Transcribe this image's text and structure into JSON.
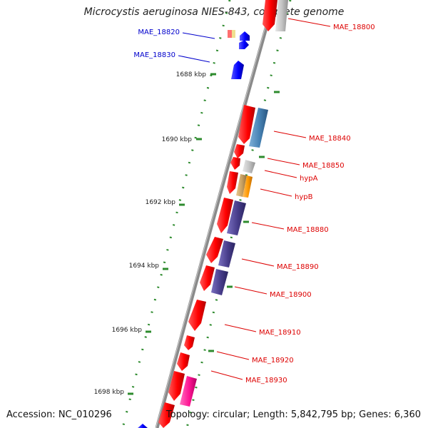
{
  "title": "Microcystis aeruginosa NIES-843, complete genome",
  "footer": {
    "accession": "Accession: NC_010296",
    "summary": "Topology: circular; Length: 5,842,795 bp; Genes: 6,360"
  },
  "colors": {
    "backbone": "#8a8a8a",
    "tick_dots": "#2e8b2e",
    "label_red": "#dd0000",
    "label_blue": "#0000cc",
    "gene_red": "#ff0000",
    "gene_blue": "#0000ff",
    "gene_steel": "#4682b4",
    "gene_purple": "#483d8b",
    "gene_gray": "#c0c0c0",
    "gene_orange": "#ff9900",
    "gene_tan": "#c8a060",
    "gene_pink": "#ff1493"
  },
  "scale_labels": [
    "1688 kbp",
    "1690 kbp",
    "1692 kbp",
    "1694 kbp",
    "1696 kbp",
    "1698 kbp"
  ],
  "gene_labels": [
    {
      "id": "MAE_18800",
      "text": "MAE_18800"
    },
    {
      "id": "MAE_18820",
      "text": "MAE_18820"
    },
    {
      "id": "MAE_18830",
      "text": "MAE_18830"
    },
    {
      "id": "MAE_18840",
      "text": "MAE_18840"
    },
    {
      "id": "MAE_18850",
      "text": "MAE_18850"
    },
    {
      "id": "hypA",
      "text": "hypA"
    },
    {
      "id": "hypB",
      "text": "hypB"
    },
    {
      "id": "MAE_18880",
      "text": "MAE_18880"
    },
    {
      "id": "MAE_18890",
      "text": "MAE_18890"
    },
    {
      "id": "MAE_18900",
      "text": "MAE_18900"
    },
    {
      "id": "MAE_18910",
      "text": "MAE_18910"
    },
    {
      "id": "MAE_18920",
      "text": "MAE_18920"
    },
    {
      "id": "MAE_18930",
      "text": "MAE_18930"
    }
  ]
}
